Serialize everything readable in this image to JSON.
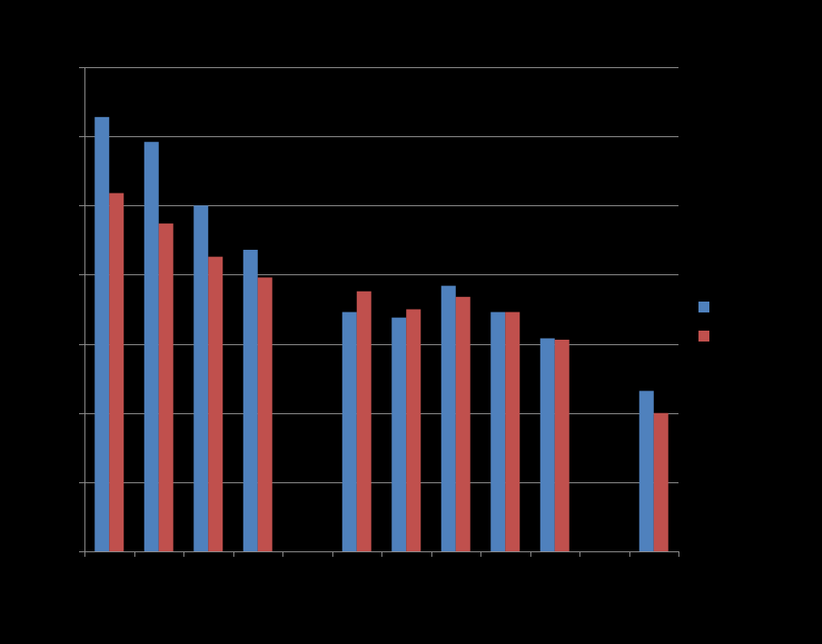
{
  "chart_data": {
    "type": "bar",
    "title": "",
    "xlabel": "",
    "ylabel": "",
    "categories": [
      "",
      "",
      "",
      "",
      "",
      "",
      "",
      "",
      "",
      "",
      "",
      ""
    ],
    "ylim": [
      0,
      3.5
    ],
    "yticks": [
      0,
      0.5,
      1,
      1.5,
      2,
      2.5,
      3,
      3.5
    ],
    "grid": true,
    "legend_position": "right",
    "series": [
      {
        "color": "#4F81BD",
        "values": [
          3.14,
          2.96,
          2.5,
          2.18,
          null,
          1.73,
          1.69,
          1.92,
          1.73,
          1.54,
          null,
          1.16
        ]
      },
      {
        "color": "#C0504D",
        "values": [
          2.59,
          2.37,
          2.13,
          1.98,
          null,
          1.88,
          1.75,
          1.84,
          1.73,
          1.53,
          null,
          1.0
        ]
      }
    ]
  }
}
